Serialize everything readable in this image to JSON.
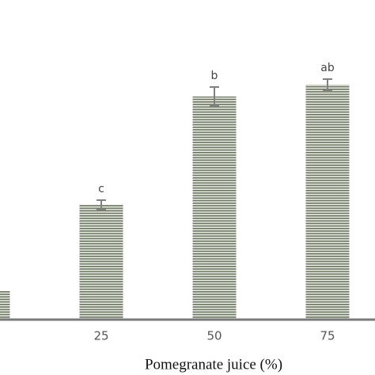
{
  "chart_data": {
    "type": "bar",
    "x_label": "Pomegranate juice (%)",
    "categories": [
      null,
      "25",
      "50",
      "75"
    ],
    "values": [
      36,
      145,
      282,
      297
    ],
    "errors": [
      null,
      6,
      12,
      7
    ],
    "letters": [
      null,
      "c",
      "b",
      "ab"
    ],
    "color": "#6e7862",
    "error_color": "#808080",
    "ylim": [
      0,
      300
    ]
  }
}
